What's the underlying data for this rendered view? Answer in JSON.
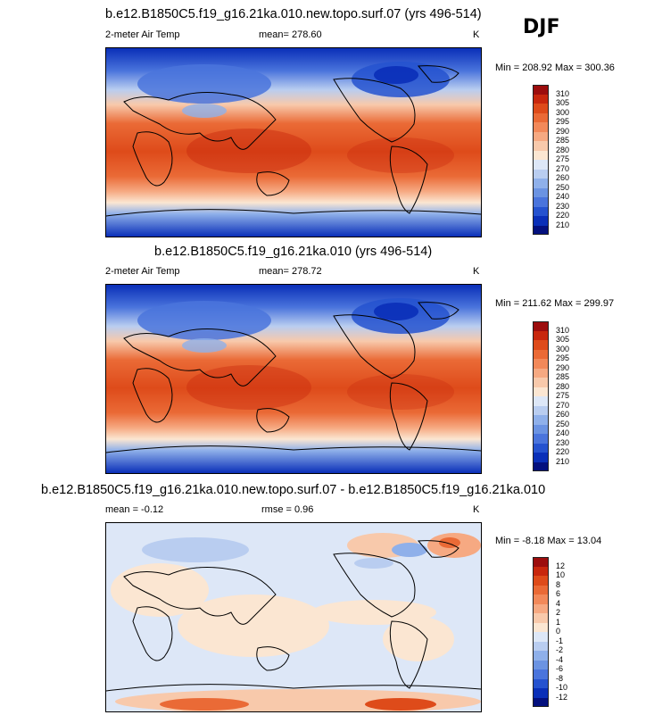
{
  "season": "DJF",
  "panels": [
    {
      "title": "b.e12.B1850C5.f19_g16.21ka.010.new.topo.surf.07 (yrs 496-514)",
      "variable": "2-meter Air Temp",
      "stats_text": "mean= 278.60",
      "units": "K",
      "minmax": "Min = 208.92 Max = 300.36",
      "levels": [
        "310",
        "305",
        "300",
        "295",
        "290",
        "285",
        "280",
        "275",
        "270",
        "260",
        "250",
        "240",
        "230",
        "220",
        "210"
      ],
      "colors": [
        "#9c0d0d",
        "#c8270d",
        "#de4b1a",
        "#ea6a36",
        "#f2895a",
        "#f6a982",
        "#f8c9ab",
        "#fbe6d2",
        "#dde7f7",
        "#b9cdf0",
        "#8fb0ea",
        "#6b93e2",
        "#4a74dc",
        "#2552cf",
        "#0a2fb8",
        "#04107e"
      ]
    },
    {
      "title": "b.e12.B1850C5.f19_g16.21ka.010 (yrs 496-514)",
      "variable": "2-meter Air Temp",
      "stats_text": "mean= 278.72",
      "units": "K",
      "minmax": "Min = 211.62 Max = 299.97",
      "levels": [
        "310",
        "305",
        "300",
        "295",
        "290",
        "285",
        "280",
        "275",
        "270",
        "260",
        "250",
        "240",
        "230",
        "220",
        "210"
      ],
      "colors": [
        "#9c0d0d",
        "#c8270d",
        "#de4b1a",
        "#ea6a36",
        "#f2895a",
        "#f6a982",
        "#f8c9ab",
        "#fbe6d2",
        "#dde7f7",
        "#b9cdf0",
        "#8fb0ea",
        "#6b93e2",
        "#4a74dc",
        "#2552cf",
        "#0a2fb8",
        "#04107e"
      ]
    },
    {
      "title": "b.e12.B1850C5.f19_g16.21ka.010.new.topo.surf.07 - b.e12.B1850C5.f19_g16.21ka.010",
      "mean_text": "mean =  -0.12",
      "rmse_text": "rmse =   0.96",
      "units": "K",
      "minmax": "Min = -8.18 Max = 13.04",
      "levels": [
        "12",
        "10",
        "8",
        "6",
        "4",
        "2",
        "1",
        "0",
        "-1",
        "-2",
        "-4",
        "-6",
        "-8",
        "-10",
        "-12"
      ],
      "colors": [
        "#9c0d0d",
        "#c8270d",
        "#de4b1a",
        "#ea6a36",
        "#f2895a",
        "#f6a982",
        "#f8c9ab",
        "#fbe6d2",
        "#dde7f7",
        "#b9cdf0",
        "#8fb0ea",
        "#6b93e2",
        "#4a74dc",
        "#2552cf",
        "#0a2fb8",
        "#04107e"
      ]
    }
  ]
}
